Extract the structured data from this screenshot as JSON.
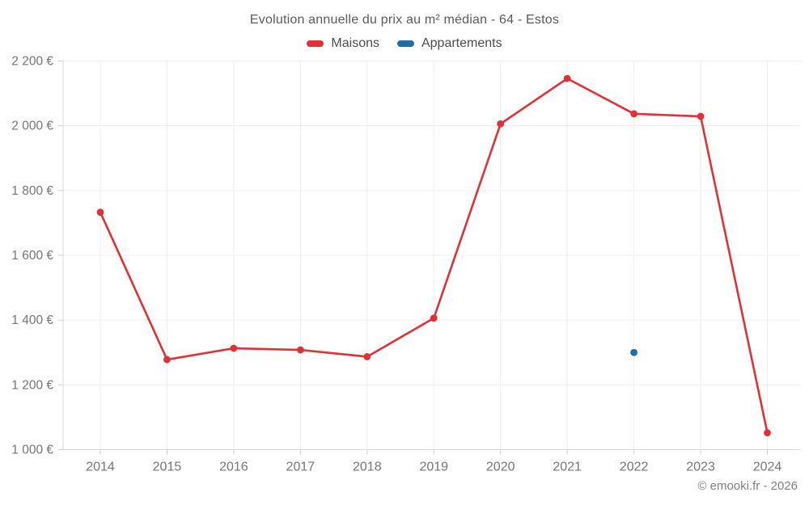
{
  "header": {
    "title": "Evolution annuelle du prix au m² médian - 64 - Estos"
  },
  "footer": {
    "credit": "© emooki.fr - 2026"
  },
  "colors": {
    "maisons": "#e03236",
    "appartements": "#1c6ea4",
    "grid": "#ededed",
    "axis": "#d9d9d9",
    "tick": "#cfcfcf",
    "axis_text": "#757575"
  },
  "chart_data": {
    "type": "line",
    "title": "Evolution annuelle du prix au m² médian - 64 - Estos",
    "xlabel": "",
    "ylabel": "",
    "x": [
      2014,
      2015,
      2016,
      2017,
      2018,
      2019,
      2020,
      2021,
      2022,
      2023,
      2024
    ],
    "xtick_labels": [
      "2014",
      "2015",
      "2016",
      "2017",
      "2018",
      "2019",
      "2020",
      "2021",
      "2022",
      "2023",
      "2024"
    ],
    "series": [
      {
        "name": "Maisons",
        "color": "#e03236",
        "values": [
          1733,
          1278,
          1313,
          1308,
          1287,
          1406,
          2006,
          2146,
          2037,
          2029,
          1052
        ]
      },
      {
        "name": "Appartements",
        "color": "#1c6ea4",
        "values": [
          null,
          null,
          null,
          null,
          null,
          null,
          null,
          null,
          1300,
          null,
          null
        ]
      }
    ],
    "ylim": [
      1000,
      2200
    ],
    "yticks": [
      1000,
      1200,
      1400,
      1600,
      1800,
      2000,
      2200
    ],
    "ytick_labels": [
      "1 000 €",
      "1 200 €",
      "1 400 €",
      "1 600 €",
      "1 800 €",
      "2 000 €",
      "2 200 €"
    ],
    "grid": true,
    "legend_position": "top"
  }
}
